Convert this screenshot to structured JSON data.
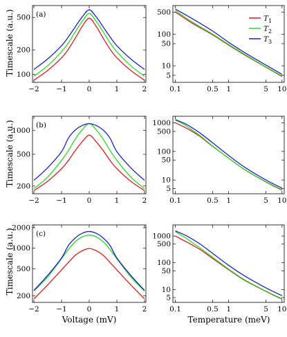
{
  "figure": {
    "ylabel": "Timescale (a.u.)",
    "xlabel_left": "Voltage (mV)",
    "xlabel_right": "Temperature (meV)"
  },
  "colors": {
    "T1": "#e41a1c",
    "T2": "#22dd22",
    "T3": "#1f1fd0"
  },
  "legend": {
    "placement": "top-right",
    "entries": [
      {
        "label": "T",
        "sub": "1",
        "series": "T1"
      },
      {
        "label": "T",
        "sub": "2",
        "series": "T2"
      },
      {
        "label": "T",
        "sub": "3",
        "series": "T3"
      }
    ]
  },
  "chart_data": [
    {
      "type": "line",
      "panel": "(a)",
      "column": "left",
      "row": 0,
      "xscale": "linear",
      "yscale": "log",
      "xlim": [
        -2.05,
        2.05
      ],
      "ylim": [
        80,
        700
      ],
      "xticks": [
        -2,
        -1,
        0,
        1,
        2
      ],
      "yticks": [
        100,
        200,
        500
      ],
      "series": [
        {
          "id": "T1",
          "x": [
            -2,
            -1.5,
            -1,
            -0.75,
            -0.5,
            -0.25,
            0,
            0.25,
            0.5,
            0.75,
            1,
            1.5,
            2
          ],
          "y": [
            85,
            112,
            160,
            205,
            280,
            390,
            490,
            390,
            280,
            205,
            160,
            112,
            85
          ]
        },
        {
          "id": "T2",
          "x": [
            -2,
            -1.5,
            -1,
            -0.75,
            -0.5,
            -0.25,
            0,
            0.25,
            0.5,
            0.75,
            1,
            1.5,
            2
          ],
          "y": [
            95,
            128,
            190,
            245,
            335,
            450,
            560,
            450,
            335,
            245,
            190,
            128,
            95
          ]
        },
        {
          "id": "T3",
          "x": [
            -2,
            -1.5,
            -1,
            -0.75,
            -0.5,
            -0.25,
            0,
            0.25,
            0.5,
            0.75,
            1,
            1.5,
            2
          ],
          "y": [
            115,
            155,
            225,
            290,
            385,
            510,
            620,
            510,
            385,
            290,
            225,
            155,
            115
          ]
        }
      ]
    },
    {
      "type": "line",
      "panel": "",
      "column": "right",
      "row": 0,
      "xscale": "log",
      "yscale": "log",
      "xlim": [
        0.09,
        11
      ],
      "ylim": [
        3,
        800
      ],
      "xticks": [
        0.1,
        0.5,
        1,
        5,
        10
      ],
      "yticks": [
        5,
        10,
        50,
        100,
        500
      ],
      "series": [
        {
          "id": "T1",
          "x": [
            0.1,
            0.2,
            0.5,
            1,
            2,
            5,
            10
          ],
          "y": [
            500,
            230,
            95,
            45,
            22,
            9,
            4.6
          ]
        },
        {
          "id": "T2",
          "x": [
            0.1,
            0.2,
            0.5,
            1,
            2,
            5,
            10
          ],
          "y": [
            560,
            250,
            100,
            47,
            23,
            9.2,
            4.8
          ]
        },
        {
          "id": "T3",
          "x": [
            0.1,
            0.2,
            0.5,
            1,
            2,
            5,
            10
          ],
          "y": [
            620,
            320,
            125,
            55,
            26,
            10.5,
            5.4
          ]
        }
      ]
    },
    {
      "type": "line",
      "panel": "(b)",
      "column": "left",
      "row": 1,
      "xscale": "linear",
      "yscale": "log",
      "xlim": [
        -2.05,
        2.05
      ],
      "ylim": [
        160,
        1500
      ],
      "xticks": [
        -2,
        -1,
        0,
        1,
        2
      ],
      "yticks": [
        200,
        500,
        1000
      ],
      "series": [
        {
          "id": "T1",
          "x": [
            -2,
            -1.5,
            -1,
            -0.75,
            -0.5,
            -0.25,
            0,
            0.25,
            0.5,
            0.75,
            1,
            1.5,
            2
          ],
          "y": [
            175,
            230,
            330,
            420,
            560,
            720,
            870,
            720,
            560,
            420,
            330,
            230,
            175
          ]
        },
        {
          "id": "T2",
          "x": [
            -2,
            -1.5,
            -1,
            -0.75,
            -0.5,
            -0.25,
            0,
            0.25,
            0.5,
            0.75,
            1,
            1.5,
            2
          ],
          "y": [
            185,
            260,
            420,
            560,
            780,
            1020,
            1220,
            1020,
            780,
            560,
            420,
            260,
            185
          ]
        },
        {
          "id": "T3",
          "x": [
            -2,
            -1.5,
            -1,
            -0.75,
            -0.5,
            -0.25,
            0,
            0.25,
            0.5,
            0.75,
            1,
            1.5,
            2
          ],
          "y": [
            235,
            340,
            540,
            800,
            1010,
            1150,
            1210,
            1150,
            1010,
            800,
            540,
            340,
            235
          ]
        }
      ]
    },
    {
      "type": "line",
      "panel": "",
      "column": "right",
      "row": 1,
      "xscale": "log",
      "yscale": "log",
      "xlim": [
        0.09,
        11
      ],
      "ylim": [
        3.3,
        1700
      ],
      "xticks": [
        0.1,
        0.5,
        1,
        5,
        10
      ],
      "yticks": [
        5,
        10,
        50,
        100,
        500,
        1000
      ],
      "series": [
        {
          "id": "T1",
          "x": [
            0.1,
            0.15,
            0.2,
            0.3,
            0.5,
            1,
            2,
            5,
            10
          ],
          "y": [
            1000,
            700,
            520,
            320,
            150,
            58,
            23,
            8.5,
            4.4
          ]
        },
        {
          "id": "T2",
          "x": [
            0.1,
            0.15,
            0.2,
            0.3,
            0.5,
            1,
            2,
            5,
            10
          ],
          "y": [
            1250,
            850,
            580,
            340,
            155,
            58,
            23,
            8.7,
            4.6
          ]
        },
        {
          "id": "T3",
          "x": [
            0.1,
            0.15,
            0.2,
            0.3,
            0.5,
            1,
            2,
            5,
            10
          ],
          "y": [
            1300,
            950,
            700,
            420,
            200,
            72,
            28,
            10,
            5.2
          ]
        }
      ]
    },
    {
      "type": "line",
      "panel": "(c)",
      "column": "left",
      "row": 2,
      "xscale": "linear",
      "yscale": "log",
      "xlim": [
        -2.05,
        2.05
      ],
      "ylim": [
        160,
        2200
      ],
      "xticks": [
        -2,
        -1,
        0,
        1,
        2
      ],
      "yticks": [
        200,
        500,
        1000,
        2000
      ],
      "series": [
        {
          "id": "T1",
          "x": [
            -2,
            -1.5,
            -1,
            -0.75,
            -0.5,
            -0.25,
            0,
            0.25,
            0.5,
            0.75,
            1,
            1.5,
            2
          ],
          "y": [
            180,
            290,
            480,
            620,
            790,
            920,
            990,
            920,
            790,
            620,
            480,
            290,
            180
          ]
        },
        {
          "id": "T2",
          "x": [
            -2,
            -1.5,
            -1,
            -0.75,
            -0.5,
            -0.25,
            0,
            0.25,
            0.5,
            0.75,
            1,
            1.5,
            2
          ],
          "y": [
            235,
            380,
            700,
            960,
            1250,
            1470,
            1560,
            1470,
            1250,
            960,
            700,
            380,
            235
          ]
        },
        {
          "id": "T3",
          "x": [
            -2,
            -1.5,
            -1,
            -0.75,
            -0.5,
            -0.25,
            0,
            0.25,
            0.5,
            0.75,
            1,
            1.5,
            2
          ],
          "y": [
            240,
            400,
            720,
            1100,
            1420,
            1660,
            1760,
            1660,
            1420,
            1100,
            720,
            400,
            240
          ]
        }
      ]
    },
    {
      "type": "line",
      "panel": "",
      "column": "right",
      "row": 2,
      "xscale": "log",
      "yscale": "log",
      "xlim": [
        0.09,
        11
      ],
      "ylim": [
        3.3,
        2600
      ],
      "xticks": [
        0.1,
        0.5,
        1,
        5,
        10
      ],
      "yticks": [
        5,
        10,
        50,
        100,
        500,
        1000
      ],
      "series": [
        {
          "id": "T1",
          "x": [
            0.1,
            0.15,
            0.2,
            0.3,
            0.5,
            1,
            2,
            5,
            10
          ],
          "y": [
            1000,
            650,
            480,
            300,
            145,
            55,
            22,
            8.5,
            4.3
          ]
        },
        {
          "id": "T2",
          "x": [
            0.1,
            0.15,
            0.2,
            0.3,
            0.5,
            1,
            2,
            5,
            10
          ],
          "y": [
            1450,
            900,
            600,
            340,
            160,
            58,
            23,
            8.7,
            4.5
          ]
        },
        {
          "id": "T3",
          "x": [
            0.1,
            0.15,
            0.2,
            0.3,
            0.5,
            1,
            2,
            5,
            10
          ],
          "y": [
            1550,
            1100,
            800,
            480,
            225,
            80,
            32,
            11.5,
            5.9
          ]
        }
      ]
    }
  ]
}
